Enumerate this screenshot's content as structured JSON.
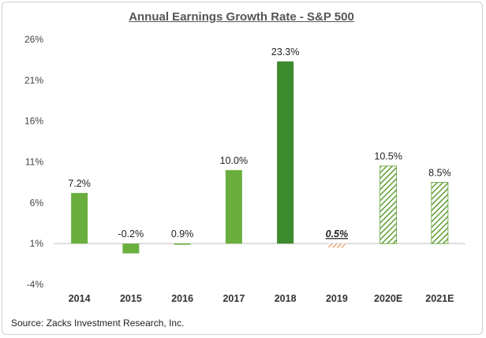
{
  "chart_data": {
    "type": "bar",
    "title": "Annual Earnings Growth Rate - S&P 500",
    "xlabel": "",
    "ylabel": "",
    "ylim": [
      -4,
      26
    ],
    "yticks": [
      -4,
      1,
      6,
      11,
      16,
      21,
      26
    ],
    "ytick_labels": [
      "-4%",
      "1%",
      "6%",
      "11%",
      "16%",
      "21%",
      "26%"
    ],
    "y_baseline": 1,
    "grid": false,
    "categories": [
      "2014",
      "2015",
      "2016",
      "2017",
      "2018",
      "2019",
      "2020E",
      "2021E"
    ],
    "values": [
      7.2,
      -0.2,
      0.9,
      10.0,
      23.3,
      0.5,
      10.5,
      8.5
    ],
    "data_labels": [
      "7.2%",
      "-0.2%",
      "0.9%",
      "10.0%",
      "23.3%",
      "0.5%",
      "10.5%",
      "8.5%"
    ],
    "bar_styles": [
      "solid",
      "solid",
      "solid",
      "solid",
      "solid-dark",
      "hatched-orange",
      "hatched-green",
      "hatched-green"
    ],
    "colors": {
      "green": "#6aaf3d",
      "dark_green": "#3e8a2e",
      "orange": "#e07b39",
      "hatch_green": "#5e9e34",
      "axis": "#bfbfbf",
      "text": "#444444"
    }
  },
  "source": "Source: Zacks Investment Research, Inc."
}
